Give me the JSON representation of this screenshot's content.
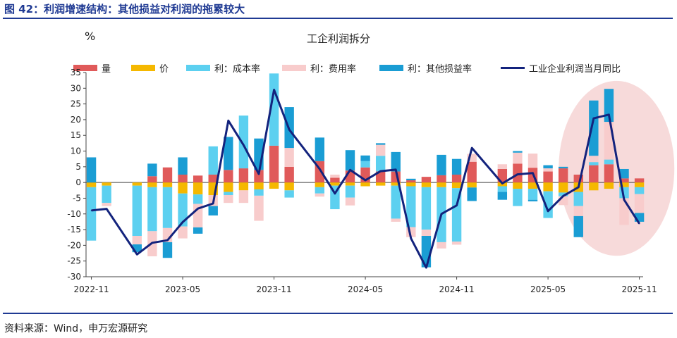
{
  "figure": {
    "title": "图 42：利润增速结构：其他损益对利润的拖累较大",
    "source": "资料来源：Wind，申万宏源研究"
  },
  "chart_data": {
    "type": "bar",
    "title": "工企利润拆分",
    "unit": "%",
    "ylim": [
      -30,
      35
    ],
    "yticks": [
      35,
      30,
      25,
      20,
      15,
      10,
      5,
      0,
      -5,
      -10,
      -15,
      -20,
      -25,
      -30
    ],
    "xtick_labels": [
      "2022-11",
      "2023-05",
      "2023-11",
      "2024-05",
      "2024-11",
      "2025-05",
      "2025-11"
    ],
    "xtick_index": [
      0,
      6,
      12,
      18,
      24,
      30,
      36
    ],
    "stacked": true,
    "categories": [
      "2022-11",
      "2022-12",
      "2023-01",
      "2023-02",
      "2023-03",
      "2023-04",
      "2023-05",
      "2023-06",
      "2023-07",
      "2023-08",
      "2023-09",
      "2023-10",
      "2023-11",
      "2023-12",
      "2024-01",
      "2024-02",
      "2024-03",
      "2024-04",
      "2024-05",
      "2024-06",
      "2024-07",
      "2024-08",
      "2024-09",
      "2024-10",
      "2024-11",
      "2024-12",
      "2025-01",
      "2025-02",
      "2025-03",
      "2025-04",
      "2025-05",
      "2025-06",
      "2025-07",
      "2025-08",
      "2025-09",
      "2025-10",
      "2025-11"
    ],
    "series": [
      {
        "name": "量",
        "color": "#e05a5a",
        "values": [
          0.0,
          0.0,
          0,
          0.0,
          2.0,
          4.8,
          2.5,
          2.2,
          2.5,
          4.0,
          4.5,
          4.0,
          11.7,
          5.0,
          0,
          6.8,
          1.5,
          3.8,
          4.8,
          3.5,
          3.5,
          0.7,
          1.8,
          2.3,
          2.5,
          6.6,
          0,
          4.3,
          6.0,
          4.7,
          3.5,
          4.5,
          2.5,
          5.5,
          5.8,
          1.3,
          1.3
        ]
      },
      {
        "name": "价",
        "color": "#f5b800",
        "values": [
          -1.5,
          -1.0,
          0,
          -1.0,
          -1.5,
          -1.5,
          -3.5,
          -3.8,
          -4.0,
          -3.0,
          -2.5,
          -2.2,
          -2.0,
          -2.5,
          0,
          -1.5,
          -1.0,
          -1.0,
          -1.2,
          -1.0,
          -1.0,
          -1.2,
          -1.5,
          -1.5,
          -1.8,
          -1.6,
          0,
          -1.2,
          -2.0,
          -2.0,
          -2.8,
          -3.2,
          -3.0,
          -2.5,
          -2.0,
          -1.5,
          -1.5
        ]
      },
      {
        "name": "利：成本率",
        "color": "#5cd0f0",
        "values": [
          -17.0,
          -5.5,
          0,
          -16.0,
          -14.0,
          -13.0,
          -10.5,
          -3.0,
          9.0,
          -1.0,
          16.8,
          -2.0,
          23.0,
          -2.3,
          0,
          -2.0,
          -7.5,
          -3.8,
          2.0,
          5.0,
          -10.5,
          -13.0,
          -13.5,
          -17.5,
          -17.0,
          0.0,
          0,
          -1.8,
          -5.5,
          -3.5,
          -8.5,
          -1.2,
          -4.5,
          1.0,
          1.5,
          -3.5,
          -2.2
        ]
      },
      {
        "name": "利：费用率",
        "color": "#f8cccc",
        "values": [
          0.0,
          -1.0,
          0,
          -2.7,
          -8.0,
          -4.5,
          -3.8,
          -7.5,
          -3.5,
          -2.5,
          -4.0,
          -8.0,
          0.0,
          6.0,
          0,
          -1.0,
          1.0,
          -2.5,
          0.0,
          3.5,
          -1.0,
          -3.2,
          -2.0,
          -2.0,
          -1.0,
          2.5,
          0,
          1.5,
          3.5,
          4.5,
          1.0,
          -2.8,
          -3.2,
          2.0,
          12.0,
          -8.5,
          -6.0
        ]
      },
      {
        "name": "利：其他损益率",
        "color": "#1a9dd4",
        "values": [
          8.0,
          0.0,
          0,
          -2.5,
          4.0,
          -5.0,
          5.5,
          -2.0,
          -3.0,
          10.5,
          0.0,
          10.0,
          0.0,
          13.0,
          0,
          7.5,
          0.0,
          6.5,
          1.8,
          0.5,
          6.2,
          0.5,
          -10.0,
          6.5,
          5.0,
          -4.3,
          0,
          -2.5,
          0.5,
          -0.5,
          1.0,
          0.5,
          -6.7,
          17.6,
          10.5,
          3.0,
          -2.8
        ]
      }
    ],
    "line": {
      "name": "工业企业利润当月同比",
      "color": "#13237d",
      "values": [
        -8.9,
        -8.4,
        null,
        -22.9,
        -19.2,
        -18.4,
        -12.6,
        -8.3,
        -6.7,
        19.7,
        11.9,
        2.7,
        29.5,
        16.8,
        null,
        4.3,
        -3.5,
        4.0,
        0.7,
        3.6,
        4.1,
        -17.8,
        -27.1,
        -10.0,
        -7.3,
        11.0,
        null,
        -0.3,
        2.6,
        3.0,
        -9.1,
        -4.3,
        -1.5,
        20.4,
        21.6,
        -5.5,
        -13.1
      ]
    },
    "annotation": "ellipse highlighting 2025-08 to 2025-11"
  }
}
